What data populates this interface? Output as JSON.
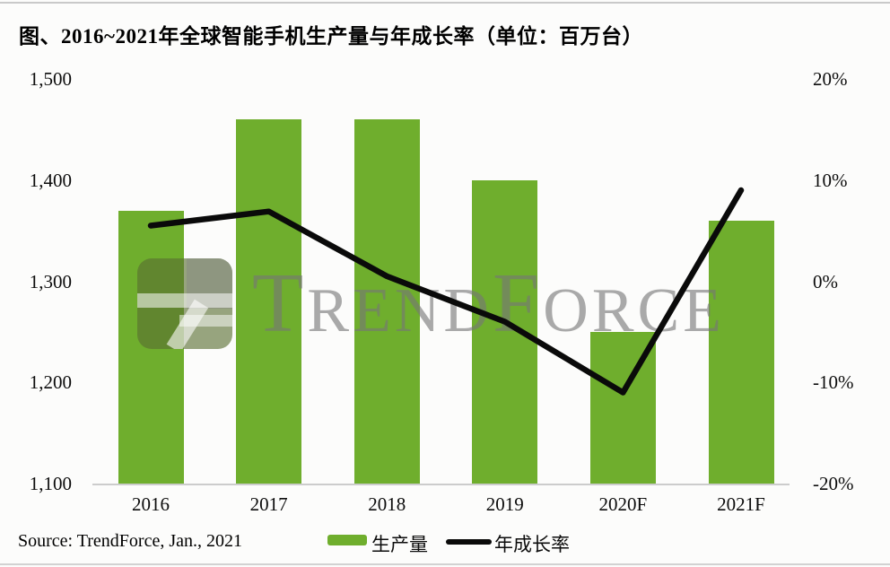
{
  "title": "图、2016~2021年全球智能手机生产量与年成长率（单位：百万台）",
  "source": "Source: TrendForce, Jan., 2021",
  "legend": {
    "bar_label": "生产量",
    "line_label": "年成长率"
  },
  "watermark": {
    "segments": [
      {
        "t": "T",
        "big": true
      },
      {
        "t": "REND",
        "big": false
      },
      {
        "t": "F",
        "big": true
      },
      {
        "t": "ORCE",
        "big": false
      }
    ]
  },
  "colors": {
    "bar": "#6fae2d",
    "line": "#0a0a0a",
    "axis_line": "#cccccc",
    "watermark_text": "#767676"
  },
  "chart_data": {
    "type": "bar",
    "title": "图、2016~2021年全球智能手机生产量与年成长率（单位：百万台）",
    "categories": [
      "2016",
      "2017",
      "2018",
      "2019",
      "2020F",
      "2021F"
    ],
    "series": [
      {
        "name": "生产量",
        "type": "bar",
        "axis": "left",
        "unit": "百万台",
        "values": [
          1370,
          1460,
          1460,
          1400,
          1250,
          1360
        ]
      },
      {
        "name": "年成长率",
        "type": "line",
        "axis": "right",
        "unit": "%",
        "values": [
          5.5,
          6.9,
          0.5,
          -4,
          -11,
          9
        ]
      }
    ],
    "left_axis": {
      "min": 1100,
      "max": 1500,
      "ticks": [
        "1,500",
        "1,400",
        "1,300",
        "1,200",
        "1,100"
      ]
    },
    "right_axis": {
      "min": -20,
      "max": 20,
      "ticks": [
        "20%",
        "10%",
        "0%",
        "-10%",
        "-20%"
      ]
    },
    "grid": false,
    "legend_position": "bottom"
  }
}
